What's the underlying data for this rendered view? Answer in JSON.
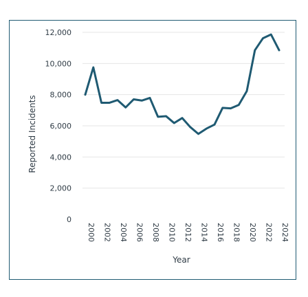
{
  "chart_data": {
    "type": "line",
    "title": "",
    "xlabel": "Year",
    "ylabel": "Reported Incidents",
    "x": [
      2000,
      2001,
      2002,
      2003,
      2004,
      2005,
      2006,
      2007,
      2008,
      2009,
      2010,
      2011,
      2012,
      2013,
      2014,
      2015,
      2016,
      2017,
      2018,
      2019,
      2020,
      2021,
      2022,
      2023,
      2024
    ],
    "x_tick_labels": [
      "2000",
      "2002",
      "2004",
      "2006",
      "2008",
      "2010",
      "2012",
      "2014",
      "2016",
      "2018",
      "2020",
      "2022",
      "2024"
    ],
    "x_tick_values": [
      2000,
      2002,
      2004,
      2006,
      2008,
      2010,
      2012,
      2014,
      2016,
      2018,
      2020,
      2022,
      2024
    ],
    "series": [
      {
        "values": [
          8000,
          9750,
          7480,
          7480,
          7650,
          7180,
          7700,
          7620,
          7790,
          6580,
          6620,
          6180,
          6500,
          5920,
          5480,
          5820,
          6080,
          7150,
          7120,
          7340,
          8230,
          10850,
          11620,
          11860,
          10850
        ],
        "color": "#1f5a72"
      }
    ],
    "y_tick_values": [
      0,
      2000,
      4000,
      6000,
      8000,
      10000,
      12000
    ],
    "y_tick_labels": [
      "0",
      "2,000",
      "4,000",
      "6,000",
      "8,000",
      "10,000",
      "12,000"
    ],
    "ylim": [
      0,
      12000
    ],
    "xlim": [
      2000,
      2024
    ],
    "grid": true,
    "grid_color": "#e6e6e6",
    "frame_color": "#1f5a72"
  }
}
